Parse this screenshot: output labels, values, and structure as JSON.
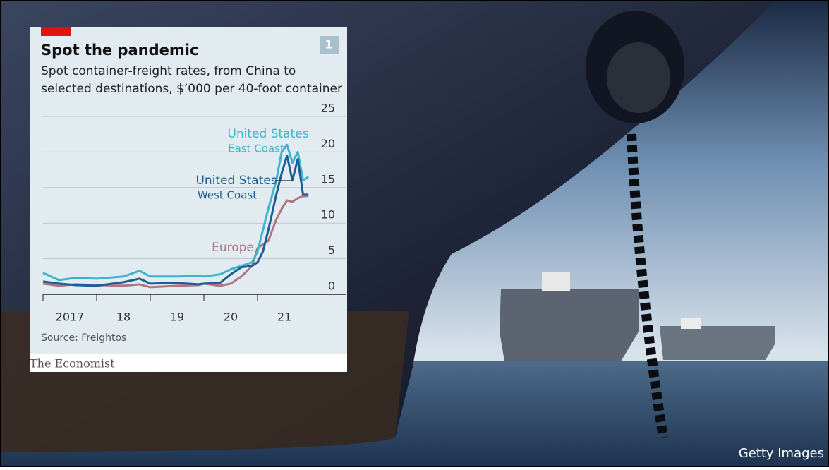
{
  "chart_data": {
    "type": "line",
    "badge": "1",
    "title": "Spot the pandemic",
    "subtitle": "Spot container-freight rates, from China to",
    "subtitle_line2": "selected destinations, $’000 per 40-foot container",
    "source": "Source: Freightos",
    "brand": "The Economist",
    "x": [
      2017,
      2017.3,
      2017.6,
      2018,
      2018.5,
      2018.8,
      2019,
      2019.5,
      2019.9,
      2020,
      2020.3,
      2020.5,
      2020.7,
      2020.9,
      2021,
      2021.1,
      2021.2,
      2021.35,
      2021.45,
      2021.55,
      2021.65,
      2021.75,
      2021.85,
      2021.95
    ],
    "xlim": [
      2017,
      2022
    ],
    "xticks": [
      {
        "value": 2017,
        "label": "2017"
      },
      {
        "value": 2018,
        "label": "18"
      },
      {
        "value": 2019,
        "label": "19"
      },
      {
        "value": 2020,
        "label": "20"
      },
      {
        "value": 2021,
        "label": "21"
      }
    ],
    "ylim": [
      0,
      25
    ],
    "yticks": [
      0,
      5,
      10,
      15,
      20,
      25
    ],
    "grid": true,
    "series": [
      {
        "name": "United States",
        "subname": "East Coast",
        "color": "#3bb5cc",
        "values": [
          3,
          2,
          2.3,
          2.2,
          2.5,
          3.3,
          2.5,
          2.5,
          2.6,
          2.5,
          2.8,
          3.5,
          4,
          4.5,
          6,
          9,
          12,
          16,
          20,
          21,
          18.5,
          20,
          16,
          16.5
        ]
      },
      {
        "name": "United States",
        "subname": "West Coast",
        "color": "#1d5d96",
        "values": [
          1.8,
          1.5,
          1.3,
          1.2,
          1.7,
          2.2,
          1.5,
          1.6,
          1.4,
          1.5,
          1.6,
          2.8,
          3.8,
          4,
          4.5,
          6,
          9,
          14,
          17,
          19.5,
          16,
          19,
          14,
          14
        ]
      },
      {
        "name": "Europe",
        "color": "#ad7680",
        "values": [
          1.5,
          1.2,
          1.4,
          1.3,
          1.2,
          1.4,
          1,
          1.2,
          1.3,
          1.5,
          1.2,
          1.5,
          2.5,
          4,
          6.5,
          7,
          7.5,
          10.5,
          12,
          13.2,
          13,
          13.5,
          13.8,
          13.8
        ]
      }
    ]
  },
  "photo": {
    "credit": "Getty Images"
  }
}
